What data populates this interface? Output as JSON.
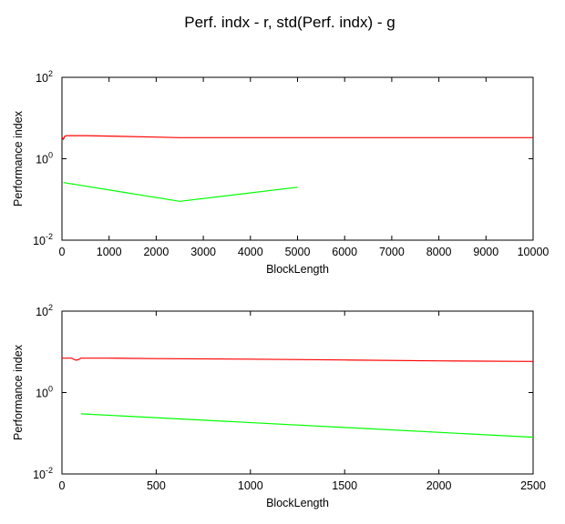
{
  "suptitle": "Perf. indx - r, std(Perf. indx) - g",
  "chart_data": [
    {
      "type": "line",
      "xlabel": "BlockLength",
      "ylabel": "Performance index",
      "yscale": "log",
      "xlim": [
        0,
        10000
      ],
      "ylim": [
        0.01,
        100
      ],
      "xticks": [
        0,
        1000,
        2000,
        3000,
        4000,
        5000,
        6000,
        7000,
        8000,
        9000,
        10000
      ],
      "yticks": [
        {
          "base": "10",
          "exp": "-2",
          "value": 0.01
        },
        {
          "base": "10",
          "exp": "0",
          "value": 1
        },
        {
          "base": "10",
          "exp": "2",
          "value": 100
        }
      ],
      "grid": false,
      "series": [
        {
          "color": "#ff0000",
          "x": [
            0,
            30,
            60,
            100,
            500,
            1000,
            2000,
            2500,
            3000,
            5000,
            8000,
            10000
          ],
          "y": [
            3.4,
            3.0,
            3.6,
            3.7,
            3.7,
            3.6,
            3.4,
            3.3,
            3.3,
            3.3,
            3.3,
            3.3
          ]
        },
        {
          "color": "#00ff00",
          "x": [
            30,
            2500,
            5000
          ],
          "y": [
            0.26,
            0.09,
            0.2
          ]
        }
      ]
    },
    {
      "type": "line",
      "xlabel": "BlockLength",
      "ylabel": "Performance index",
      "yscale": "log",
      "xlim": [
        0,
        2500
      ],
      "ylim": [
        0.01,
        100
      ],
      "xticks": [
        0,
        500,
        1000,
        1500,
        2000,
        2500
      ],
      "yticks": [
        {
          "base": "10",
          "exp": "-2",
          "value": 0.01
        },
        {
          "base": "10",
          "exp": "0",
          "value": 1
        },
        {
          "base": "10",
          "exp": "2",
          "value": 100
        }
      ],
      "grid": false,
      "series": [
        {
          "color": "#ff0000",
          "x": [
            0,
            50,
            75,
            90,
            100,
            250,
            500,
            1000,
            1500,
            2000,
            2500
          ],
          "y": [
            7.0,
            7.0,
            6.2,
            6.5,
            7.0,
            7.0,
            6.8,
            6.6,
            6.3,
            6.0,
            5.8
          ]
        },
        {
          "color": "#00ff00",
          "x": [
            100,
            2500
          ],
          "y": [
            0.3,
            0.08
          ]
        }
      ]
    }
  ]
}
